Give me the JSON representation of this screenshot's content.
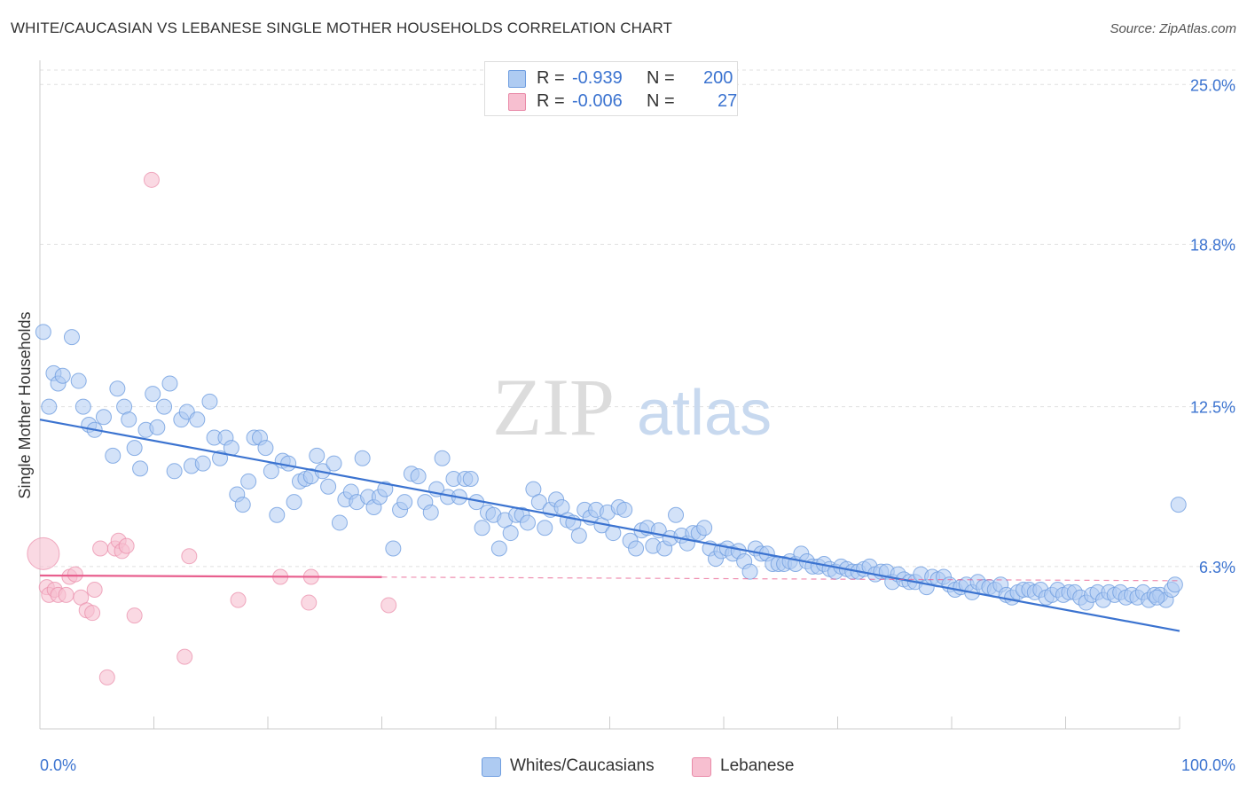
{
  "title": "WHITE/CAUCASIAN VS LEBANESE SINGLE MOTHER HOUSEHOLDS CORRELATION CHART",
  "source": "Source: ZipAtlas.com",
  "watermark": {
    "zip": "ZIP",
    "atlas": "atlas"
  },
  "legend": {
    "rows": [
      {
        "r_label": "R =",
        "r_value": "-0.939",
        "n_label": "N =",
        "n_value": "200",
        "color": "#aecbf2",
        "border": "#6f9ee0"
      },
      {
        "r_label": "R =",
        "r_value": "-0.006",
        "n_label": "N =",
        "n_value": "27",
        "color": "#f7bfd0",
        "border": "#e98aa8"
      }
    ]
  },
  "bottom_legend": [
    {
      "label": "Whites/Caucasians",
      "color": "#aecbf2",
      "border": "#6f9ee0"
    },
    {
      "label": "Lebanese",
      "color": "#f7bfd0",
      "border": "#e98aa8"
    }
  ],
  "chart_data": {
    "type": "scatter",
    "ylabel": "Single Mother Households",
    "xlim": [
      0,
      100
    ],
    "ylim": [
      0,
      25.8
    ],
    "x_tick_labels": [
      "0.0%",
      "100.0%"
    ],
    "y_ticks": [
      6.3,
      12.5,
      18.8,
      25.0
    ],
    "y_tick_labels": [
      "6.3%",
      "12.5%",
      "18.8%",
      "25.0%"
    ],
    "grid": true,
    "colors": {
      "blue": "#3b73d0",
      "blue_fill": "#aecbf2",
      "pink": "#e85f8e",
      "pink_fill": "#f7bfd0",
      "axis_text": "#3b73d0"
    },
    "series": [
      {
        "name": "Whites/Caucasians",
        "trend": {
          "x": [
            0,
            100
          ],
          "y": [
            12.0,
            3.8
          ],
          "dashed_from": null
        },
        "points": [
          [
            0.3,
            15.4
          ],
          [
            0.8,
            12.5
          ],
          [
            1.2,
            13.8
          ],
          [
            1.6,
            13.4
          ],
          [
            2.0,
            13.7
          ],
          [
            2.8,
            15.2
          ],
          [
            3.4,
            13.5
          ],
          [
            3.8,
            12.5
          ],
          [
            4.3,
            11.8
          ],
          [
            4.8,
            11.6
          ],
          [
            5.6,
            12.1
          ],
          [
            6.4,
            10.6
          ],
          [
            6.8,
            13.2
          ],
          [
            7.4,
            12.5
          ],
          [
            7.8,
            12.0
          ],
          [
            8.3,
            10.9
          ],
          [
            8.8,
            10.1
          ],
          [
            9.3,
            11.6
          ],
          [
            9.9,
            13.0
          ],
          [
            10.3,
            11.7
          ],
          [
            10.9,
            12.5
          ],
          [
            11.4,
            13.4
          ],
          [
            11.8,
            10.0
          ],
          [
            12.4,
            12.0
          ],
          [
            12.9,
            12.3
          ],
          [
            13.3,
            10.2
          ],
          [
            13.8,
            12.0
          ],
          [
            14.3,
            10.3
          ],
          [
            14.9,
            12.7
          ],
          [
            15.3,
            11.3
          ],
          [
            15.8,
            10.5
          ],
          [
            16.3,
            11.3
          ],
          [
            16.8,
            10.9
          ],
          [
            17.3,
            9.1
          ],
          [
            17.8,
            8.7
          ],
          [
            18.3,
            9.6
          ],
          [
            18.8,
            11.3
          ],
          [
            19.3,
            11.3
          ],
          [
            19.8,
            10.9
          ],
          [
            20.3,
            10.0
          ],
          [
            20.8,
            8.3
          ],
          [
            21.3,
            10.4
          ],
          [
            21.8,
            10.3
          ],
          [
            22.3,
            8.8
          ],
          [
            22.8,
            9.6
          ],
          [
            23.3,
            9.7
          ],
          [
            23.8,
            9.8
          ],
          [
            24.3,
            10.6
          ],
          [
            24.8,
            10.0
          ],
          [
            25.3,
            9.4
          ],
          [
            25.8,
            10.3
          ],
          [
            26.3,
            8.0
          ],
          [
            26.8,
            8.9
          ],
          [
            27.3,
            9.2
          ],
          [
            27.8,
            8.8
          ],
          [
            28.3,
            10.5
          ],
          [
            28.8,
            9.0
          ],
          [
            29.3,
            8.6
          ],
          [
            29.8,
            9.0
          ],
          [
            30.3,
            9.3
          ],
          [
            31.0,
            7.0
          ],
          [
            31.6,
            8.5
          ],
          [
            32.0,
            8.8
          ],
          [
            32.6,
            9.9
          ],
          [
            33.2,
            9.8
          ],
          [
            33.8,
            8.8
          ],
          [
            34.3,
            8.4
          ],
          [
            34.8,
            9.3
          ],
          [
            35.3,
            10.5
          ],
          [
            35.8,
            9.0
          ],
          [
            36.3,
            9.7
          ],
          [
            36.8,
            9.0
          ],
          [
            37.3,
            9.7
          ],
          [
            37.8,
            9.7
          ],
          [
            38.3,
            8.8
          ],
          [
            38.8,
            7.8
          ],
          [
            39.3,
            8.4
          ],
          [
            39.8,
            8.3
          ],
          [
            40.3,
            7.0
          ],
          [
            40.8,
            8.1
          ],
          [
            41.3,
            7.6
          ],
          [
            41.8,
            8.3
          ],
          [
            42.3,
            8.3
          ],
          [
            42.8,
            8.0
          ],
          [
            43.3,
            9.3
          ],
          [
            43.8,
            8.8
          ],
          [
            44.3,
            7.8
          ],
          [
            44.8,
            8.5
          ],
          [
            45.3,
            8.9
          ],
          [
            45.8,
            8.6
          ],
          [
            46.3,
            8.1
          ],
          [
            46.8,
            8.0
          ],
          [
            47.3,
            7.5
          ],
          [
            47.8,
            8.5
          ],
          [
            48.3,
            8.2
          ],
          [
            48.8,
            8.5
          ],
          [
            49.3,
            7.9
          ],
          [
            49.8,
            8.4
          ],
          [
            50.3,
            7.6
          ],
          [
            50.8,
            8.6
          ],
          [
            51.3,
            8.5
          ],
          [
            51.8,
            7.3
          ],
          [
            52.3,
            7.0
          ],
          [
            52.8,
            7.7
          ],
          [
            53.3,
            7.8
          ],
          [
            53.8,
            7.1
          ],
          [
            54.3,
            7.7
          ],
          [
            54.8,
            7.0
          ],
          [
            55.3,
            7.4
          ],
          [
            55.8,
            8.3
          ],
          [
            56.3,
            7.5
          ],
          [
            56.8,
            7.2
          ],
          [
            57.3,
            7.6
          ],
          [
            57.8,
            7.6
          ],
          [
            58.3,
            7.8
          ],
          [
            58.8,
            7.0
          ],
          [
            59.3,
            6.6
          ],
          [
            59.8,
            6.9
          ],
          [
            60.3,
            7.0
          ],
          [
            60.8,
            6.8
          ],
          [
            61.3,
            6.9
          ],
          [
            61.8,
            6.5
          ],
          [
            62.3,
            6.1
          ],
          [
            62.8,
            7.0
          ],
          [
            63.3,
            6.8
          ],
          [
            63.8,
            6.8
          ],
          [
            64.3,
            6.4
          ],
          [
            64.8,
            6.4
          ],
          [
            65.3,
            6.4
          ],
          [
            65.8,
            6.5
          ],
          [
            66.3,
            6.4
          ],
          [
            66.8,
            6.8
          ],
          [
            67.3,
            6.5
          ],
          [
            67.8,
            6.3
          ],
          [
            68.3,
            6.3
          ],
          [
            68.8,
            6.4
          ],
          [
            69.3,
            6.2
          ],
          [
            69.8,
            6.1
          ],
          [
            70.3,
            6.3
          ],
          [
            70.8,
            6.2
          ],
          [
            71.3,
            6.1
          ],
          [
            71.8,
            6.1
          ],
          [
            72.3,
            6.2
          ],
          [
            72.8,
            6.3
          ],
          [
            73.3,
            6.0
          ],
          [
            73.8,
            6.1
          ],
          [
            74.3,
            6.1
          ],
          [
            74.8,
            5.7
          ],
          [
            75.3,
            6.0
          ],
          [
            75.8,
            5.8
          ],
          [
            76.3,
            5.7
          ],
          [
            76.8,
            5.7
          ],
          [
            77.3,
            6.0
          ],
          [
            77.8,
            5.5
          ],
          [
            78.3,
            5.9
          ],
          [
            78.8,
            5.8
          ],
          [
            79.3,
            5.9
          ],
          [
            79.8,
            5.6
          ],
          [
            80.3,
            5.4
          ],
          [
            80.8,
            5.5
          ],
          [
            81.3,
            5.6
          ],
          [
            81.8,
            5.3
          ],
          [
            82.3,
            5.7
          ],
          [
            82.8,
            5.5
          ],
          [
            83.3,
            5.5
          ],
          [
            83.8,
            5.4
          ],
          [
            84.3,
            5.6
          ],
          [
            84.8,
            5.2
          ],
          [
            85.3,
            5.1
          ],
          [
            85.8,
            5.3
          ],
          [
            86.3,
            5.4
          ],
          [
            86.8,
            5.4
          ],
          [
            87.3,
            5.3
          ],
          [
            87.8,
            5.4
          ],
          [
            88.3,
            5.1
          ],
          [
            88.8,
            5.2
          ],
          [
            89.3,
            5.4
          ],
          [
            89.8,
            5.2
          ],
          [
            90.3,
            5.3
          ],
          [
            90.8,
            5.3
          ],
          [
            91.3,
            5.1
          ],
          [
            91.8,
            4.9
          ],
          [
            92.3,
            5.2
          ],
          [
            92.8,
            5.3
          ],
          [
            93.3,
            5.0
          ],
          [
            93.8,
            5.3
          ],
          [
            94.3,
            5.2
          ],
          [
            94.8,
            5.3
          ],
          [
            95.3,
            5.1
          ],
          [
            95.8,
            5.2
          ],
          [
            96.3,
            5.1
          ],
          [
            96.8,
            5.3
          ],
          [
            97.3,
            5.0
          ],
          [
            97.8,
            5.2
          ],
          [
            98.3,
            5.2
          ],
          [
            98.8,
            5.0
          ],
          [
            99.3,
            5.4
          ],
          [
            99.6,
            5.6
          ],
          [
            99.9,
            8.7
          ],
          [
            98.0,
            5.1
          ]
        ]
      },
      {
        "name": "Lebanese",
        "trend": {
          "x": [
            0,
            100
          ],
          "y": [
            5.95,
            5.75
          ],
          "dashed_from": 30
        },
        "points": [
          [
            0.3,
            6.8
          ],
          [
            0.6,
            5.5
          ],
          [
            0.8,
            5.2
          ],
          [
            1.3,
            5.4
          ],
          [
            1.6,
            5.2
          ],
          [
            2.3,
            5.2
          ],
          [
            2.6,
            5.9
          ],
          [
            3.1,
            6.0
          ],
          [
            3.6,
            5.1
          ],
          [
            4.1,
            4.6
          ],
          [
            4.6,
            4.5
          ],
          [
            4.8,
            5.4
          ],
          [
            5.3,
            7.0
          ],
          [
            5.9,
            2.0
          ],
          [
            6.6,
            7.0
          ],
          [
            6.9,
            7.3
          ],
          [
            7.2,
            6.9
          ],
          [
            7.6,
            7.1
          ],
          [
            8.3,
            4.4
          ],
          [
            9.8,
            21.3
          ],
          [
            12.7,
            2.8
          ],
          [
            13.1,
            6.7
          ],
          [
            17.4,
            5.0
          ],
          [
            21.1,
            5.9
          ],
          [
            23.6,
            4.9
          ],
          [
            23.8,
            5.9
          ],
          [
            30.6,
            4.8
          ]
        ]
      }
    ]
  }
}
